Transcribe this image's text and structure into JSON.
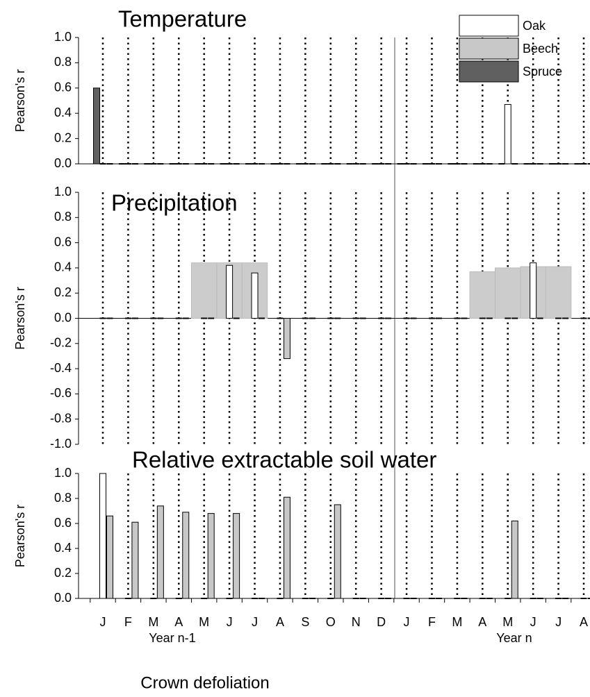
{
  "chart_data": [
    {
      "type": "bar",
      "title": "Temperature",
      "ylabel": "Pearson's r",
      "ylim": [
        0,
        1
      ],
      "yticks": [
        {
          "value": 0,
          "label": "0.0"
        },
        0.2,
        0.4,
        0.6,
        0.8,
        {
          "value": 1,
          "label": "1.0"
        }
      ],
      "xgrid": true,
      "legend": "upper right",
      "series": [
        {
          "name": "Oak",
          "color": "#ffffff",
          "values": [
            0,
            0,
            0,
            0,
            0,
            0,
            0,
            0,
            0,
            0,
            0,
            0,
            0,
            0,
            0,
            0,
            0.47,
            0,
            0,
            0
          ]
        },
        {
          "name": "Beech",
          "color": "#c8c8c8",
          "values": [
            0,
            0,
            0,
            0,
            0,
            0,
            0,
            0,
            0,
            0,
            0,
            0,
            0,
            0,
            0,
            0,
            0,
            0,
            0,
            0
          ]
        },
        {
          "name": "Spruce",
          "color": "#606060",
          "values": [
            0.6,
            0,
            0,
            0,
            0,
            0,
            0,
            0,
            0,
            0,
            0,
            0,
            0,
            0,
            0,
            0,
            0,
            0,
            0,
            0
          ]
        }
      ]
    },
    {
      "type": "bar",
      "title": "Precipitation",
      "ylabel": "Pearson's r",
      "ylim": [
        -1,
        1
      ],
      "yticks": [
        {
          "value": -1,
          "label": "-1.0"
        },
        -0.8,
        -0.6,
        -0.4,
        -0.2,
        {
          "value": 0,
          "label": "0.0"
        },
        0.2,
        0.4,
        0.6,
        0.8,
        {
          "value": 1,
          "label": "1.0"
        }
      ],
      "xgrid": true,
      "series": [
        {
          "color": "#cccccc",
          "style": "band",
          "values": [
            null,
            null,
            null,
            null,
            0.44,
            0.44,
            0.44,
            null,
            null,
            null,
            null,
            null,
            null,
            null,
            null,
            0.37,
            0.4,
            0.41,
            0.41,
            null
          ]
        },
        {
          "color": "#ffffff",
          "values": [
            0,
            0,
            0,
            0,
            0,
            0.42,
            0.36,
            0,
            0,
            0,
            0,
            0,
            0,
            0,
            0,
            0,
            0,
            0.44,
            0,
            0
          ]
        },
        {
          "color": "#c8c8c8",
          "values": [
            0,
            0,
            0,
            0,
            0,
            0,
            0,
            -0.32,
            0,
            0,
            0,
            0,
            0,
            0,
            0,
            0,
            0,
            0,
            0,
            0
          ]
        }
      ]
    },
    {
      "type": "bar",
      "title": "Relative extractable soil water",
      "ylabel": "Pearson's r",
      "ylim": [
        0,
        1
      ],
      "yticks": [
        {
          "value": 0,
          "label": "0.0"
        },
        0.2,
        0.4,
        0.6,
        0.8,
        {
          "value": 1,
          "label": "1.0"
        }
      ],
      "xgrid": true,
      "categories": [
        "J",
        "F",
        "M",
        "A",
        "M",
        "J",
        "J",
        "A",
        "S",
        "O",
        "N",
        "D",
        "J",
        "F",
        "M",
        "A",
        "M",
        "J",
        "J",
        "A"
      ],
      "xgroups": [
        "Year n-1",
        "Year n"
      ],
      "xlabel": "Crown defoliation",
      "series": [
        {
          "color": "#ffffff",
          "values": [
            1,
            0,
            0,
            0,
            0,
            0,
            0,
            0,
            0,
            0,
            0,
            0,
            0,
            0,
            0,
            0,
            0,
            0,
            0,
            0
          ]
        },
        {
          "color": "#c8c8c8",
          "values": [
            0.66,
            0.61,
            0.74,
            0.69,
            0.68,
            0.68,
            0,
            0.81,
            0,
            0.75,
            0,
            0,
            0,
            0,
            0,
            0,
            0.62,
            0,
            0,
            0
          ]
        }
      ]
    }
  ]
}
